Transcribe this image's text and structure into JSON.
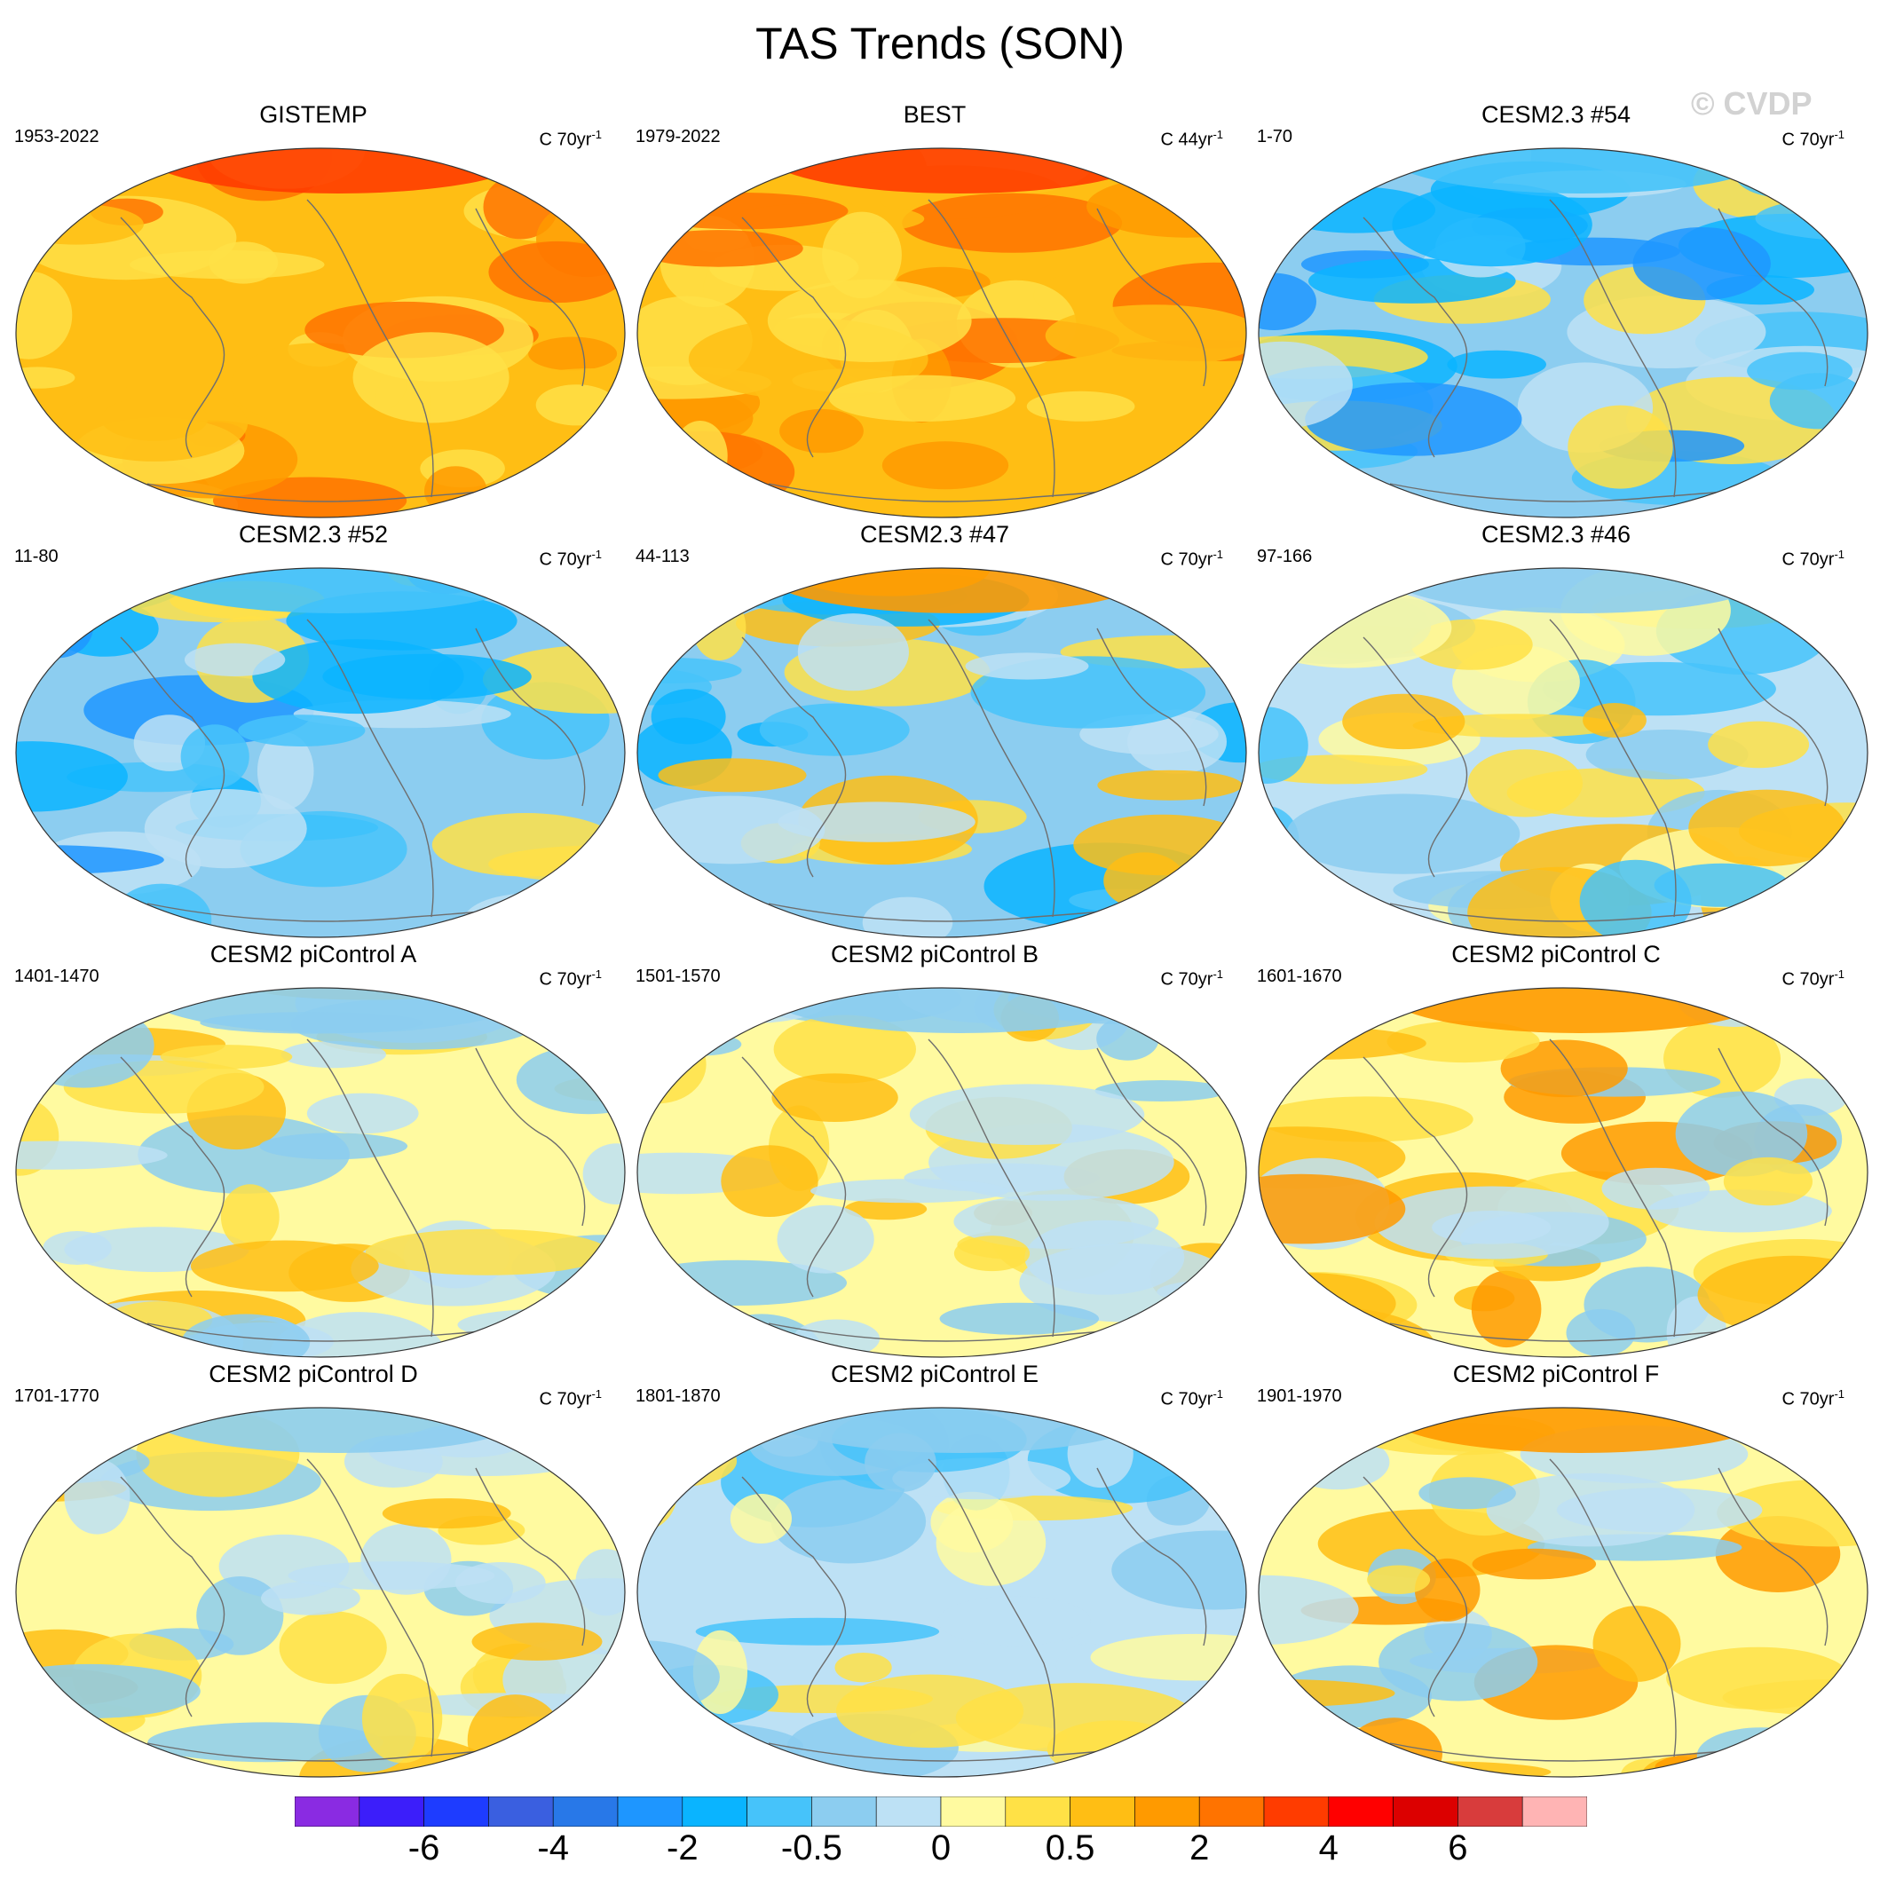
{
  "title": "TAS Trends (SON)",
  "watermark": "© CVDP",
  "colors": {
    "scale": [
      "#8a2be2",
      "#3c1efa",
      "#1e3cff",
      "#3a5fe0",
      "#2878e8",
      "#1e96ff",
      "#0ab4ff",
      "#46c3fa",
      "#8ccdf0",
      "#bde1f5",
      "#fffaa0",
      "#ffe146",
      "#ffbe14",
      "#ff9a00",
      "#ff7300",
      "#ff3c00",
      "#ff0000",
      "#dc0000",
      "#d83c3c",
      "#ffb4b4"
    ],
    "coastline": "#6e6e6e"
  },
  "colorbar_labels": [
    "-6",
    "-4",
    "-2",
    "-0.5",
    "0",
    "0.5",
    "2",
    "4",
    "6"
  ],
  "panels": [
    {
      "title": "GISTEMP",
      "period": "1953-2022",
      "units": "C 70yr",
      "units_sup": "-1",
      "pattern": "warm"
    },
    {
      "title": "BEST",
      "period": "1979-2022",
      "units": "C 44yr",
      "units_sup": "-1",
      "pattern": "warm"
    },
    {
      "title": "CESM2.3 #54",
      "period": "1-70",
      "units": "C 70yr",
      "units_sup": "-1",
      "pattern": "cool"
    },
    {
      "title": "CESM2.3 #52",
      "period": "11-80",
      "units": "C 70yr",
      "units_sup": "-1",
      "pattern": "cool"
    },
    {
      "title": "CESM2.3 #47",
      "period": "44-113",
      "units": "C 70yr",
      "units_sup": "-1",
      "pattern": "mixed-warm-north"
    },
    {
      "title": "CESM2.3 #46",
      "period": "97-166",
      "units": "C 70yr",
      "units_sup": "-1",
      "pattern": "mixed"
    },
    {
      "title": "CESM2 piControl A",
      "period": "1401-1470",
      "units": "C 70yr",
      "units_sup": "-1",
      "pattern": "neutral"
    },
    {
      "title": "CESM2 piControl B",
      "period": "1501-1570",
      "units": "C 70yr",
      "units_sup": "-1",
      "pattern": "neutral"
    },
    {
      "title": "CESM2 piControl C",
      "period": "1601-1670",
      "units": "C 70yr",
      "units_sup": "-1",
      "pattern": "neutral-warm"
    },
    {
      "title": "CESM2 piControl D",
      "period": "1701-1770",
      "units": "C 70yr",
      "units_sup": "-1",
      "pattern": "neutral"
    },
    {
      "title": "CESM2 piControl E",
      "period": "1801-1870",
      "units": "C 70yr",
      "units_sup": "-1",
      "pattern": "neutral-cool"
    },
    {
      "title": "CESM2 piControl F",
      "period": "1901-1970",
      "units": "C 70yr",
      "units_sup": "-1",
      "pattern": "neutral-warm"
    }
  ]
}
